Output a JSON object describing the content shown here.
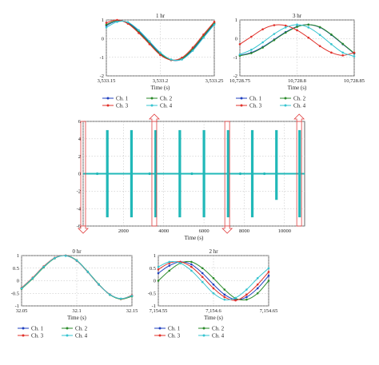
{
  "colors": {
    "ch1": "#1f3fbf",
    "ch2": "#2a8a2a",
    "ch3": "#e0302a",
    "ch4": "#35c4d0",
    "main_signal": "#20b8b8",
    "marker": "#e04040"
  },
  "chart_data": [
    {
      "id": "p1hr",
      "type": "line",
      "title": "1 hr",
      "xlabel": "Time (s)",
      "ylabel": "",
      "xlim": [
        3533.15,
        3533.25
      ],
      "ylim": [
        -2,
        1
      ],
      "xtick_labels": [
        "3,533.15",
        "3,533.2",
        "3,533.25"
      ],
      "ytick_labels": [
        "1",
        "0",
        "-1",
        "-2"
      ],
      "grid": true,
      "legend_position": "below",
      "x": [
        3533.15,
        3533.16,
        3533.17,
        3533.18,
        3533.19,
        3533.2,
        3533.21,
        3533.22,
        3533.23,
        3533.24,
        3533.25
      ],
      "series": [
        {
          "name": "Ch. 1",
          "color_key": "ch1",
          "values": [
            0.7,
            0.95,
            0.85,
            0.4,
            -0.2,
            -0.8,
            -1.15,
            -1.1,
            -0.6,
            0.1,
            0.8
          ]
        },
        {
          "name": "Ch. 2",
          "color_key": "ch2",
          "values": [
            0.75,
            0.97,
            0.82,
            0.35,
            -0.25,
            -0.83,
            -1.15,
            -1.07,
            -0.55,
            0.15,
            0.85
          ]
        },
        {
          "name": "Ch. 3",
          "color_key": "ch3",
          "values": [
            0.85,
            1.0,
            0.8,
            0.3,
            -0.3,
            -0.88,
            -1.15,
            -1.02,
            -0.48,
            0.22,
            0.9
          ]
        },
        {
          "name": "Ch. 4",
          "color_key": "ch4",
          "values": [
            0.6,
            0.9,
            0.88,
            0.45,
            -0.15,
            -0.75,
            -1.12,
            -1.12,
            -0.65,
            0.05,
            0.75
          ]
        }
      ]
    },
    {
      "id": "p3hr",
      "type": "line",
      "title": "3 hr",
      "xlabel": "Time (s)",
      "ylabel": "",
      "xlim": [
        10728.75,
        10728.85
      ],
      "ylim": [
        -2,
        1
      ],
      "xtick_labels": [
        "10,728.75",
        "10,728.8",
        "10,728.85"
      ],
      "ytick_labels": [
        "1",
        "0",
        "-1",
        "-2"
      ],
      "grid": true,
      "legend_position": "below",
      "x": [
        10728.75,
        10728.76,
        10728.77,
        10728.78,
        10728.79,
        10728.8,
        10728.81,
        10728.82,
        10728.83,
        10728.84,
        10728.85
      ],
      "series": [
        {
          "name": "Ch. 1",
          "color_key": "ch1",
          "values": [
            -0.9,
            -0.75,
            -0.45,
            -0.05,
            0.35,
            0.65,
            0.75,
            0.6,
            0.2,
            -0.3,
            -0.8
          ]
        },
        {
          "name": "Ch. 2",
          "color_key": "ch2",
          "values": [
            -0.92,
            -0.78,
            -0.48,
            -0.08,
            0.32,
            0.63,
            0.75,
            0.62,
            0.22,
            -0.28,
            -0.78
          ]
        },
        {
          "name": "Ch. 3",
          "color_key": "ch3",
          "values": [
            -0.3,
            0.1,
            0.5,
            0.72,
            0.7,
            0.45,
            0.05,
            -0.4,
            -0.75,
            -0.9,
            -0.75
          ]
        },
        {
          "name": "Ch. 4",
          "color_key": "ch4",
          "values": [
            -0.85,
            -0.6,
            -0.2,
            0.25,
            0.6,
            0.75,
            0.6,
            0.2,
            -0.3,
            -0.75,
            -0.95
          ]
        }
      ]
    },
    {
      "id": "pmain",
      "type": "line",
      "title": "",
      "xlabel": "Time (s)",
      "ylabel": "",
      "xlim": [
        0,
        11000
      ],
      "ylim": [
        -6,
        6
      ],
      "xticks": [
        0,
        2000,
        4000,
        6000,
        8000,
        10000
      ],
      "xtick_labels": [
        "0",
        "2000",
        "4000",
        "6000",
        "8000",
        "10000"
      ],
      "yticks": [
        6,
        4,
        2,
        0,
        -2,
        -4,
        -6
      ],
      "ytick_labels": [
        "6",
        "4",
        "2",
        "0",
        "-2",
        "-4",
        "-6"
      ],
      "grid": true,
      "spike_times": [
        1200,
        2400,
        3600,
        4800,
        6000,
        7200,
        8400,
        9600,
        10750
      ],
      "spike_ranges": [
        [
          -5,
          5
        ],
        [
          -5,
          5
        ],
        [
          -5,
          5
        ],
        [
          -5,
          5
        ],
        [
          -5,
          5
        ],
        [
          -5,
          5
        ],
        [
          -5,
          5
        ],
        [
          -3,
          5
        ],
        [
          -5,
          5
        ]
      ],
      "baseline": 0
    },
    {
      "id": "p0hr",
      "type": "line",
      "title": "0 hr",
      "xlabel": "Time (s)",
      "ylabel": "",
      "xlim": [
        32.05,
        32.15
      ],
      "ylim": [
        -1,
        1
      ],
      "xtick_labels": [
        "32.05",
        "32.1",
        "32.15"
      ],
      "ytick_labels": [
        "1",
        "0.5",
        "0",
        "-0.5",
        "-1"
      ],
      "grid": true,
      "legend_position": "below",
      "x": [
        32.05,
        32.06,
        32.07,
        32.08,
        32.09,
        32.1,
        32.11,
        32.12,
        32.13,
        32.14,
        32.15
      ],
      "series": [
        {
          "name": "Ch. 1",
          "color_key": "ch1",
          "values": [
            -0.3,
            0.1,
            0.55,
            0.9,
            1.0,
            0.8,
            0.35,
            -0.15,
            -0.55,
            -0.72,
            -0.6
          ]
        },
        {
          "name": "Ch. 2",
          "color_key": "ch2",
          "values": [
            -0.32,
            0.08,
            0.53,
            0.89,
            1.0,
            0.81,
            0.36,
            -0.14,
            -0.56,
            -0.73,
            -0.62
          ]
        },
        {
          "name": "Ch. 3",
          "color_key": "ch3",
          "values": [
            -0.28,
            0.12,
            0.57,
            0.91,
            1.0,
            0.79,
            0.34,
            -0.16,
            -0.54,
            -0.72,
            -0.58
          ]
        },
        {
          "name": "Ch. 4",
          "color_key": "ch4",
          "values": [
            -0.3,
            0.1,
            0.55,
            0.9,
            0.99,
            0.8,
            0.35,
            -0.15,
            -0.55,
            -0.71,
            -0.6
          ]
        }
      ]
    },
    {
      "id": "p2hr",
      "type": "line",
      "title": "2 hr",
      "xlabel": "Time (s)",
      "ylabel": "",
      "xlim": [
        7154.55,
        7154.65
      ],
      "ylim": [
        -1,
        1
      ],
      "xtick_labels": [
        "7,154.55",
        "7,154.6",
        "7,154.65"
      ],
      "ytick_labels": [
        "1",
        "0.5",
        "0",
        "-0.5",
        "-1"
      ],
      "grid": true,
      "legend_position": "below",
      "x": [
        7154.55,
        7154.56,
        7154.57,
        7154.58,
        7154.59,
        7154.6,
        7154.61,
        7154.62,
        7154.63,
        7154.64,
        7154.65
      ],
      "series": [
        {
          "name": "Ch. 1",
          "color_key": "ch1",
          "values": [
            0.3,
            0.6,
            0.75,
            0.65,
            0.3,
            -0.15,
            -0.55,
            -0.75,
            -0.65,
            -0.3,
            0.2
          ]
        },
        {
          "name": "Ch. 2",
          "color_key": "ch2",
          "values": [
            0.0,
            0.4,
            0.7,
            0.75,
            0.5,
            0.1,
            -0.35,
            -0.7,
            -0.75,
            -0.5,
            0.0
          ]
        },
        {
          "name": "Ch. 3",
          "color_key": "ch3",
          "values": [
            0.45,
            0.7,
            0.75,
            0.55,
            0.15,
            -0.3,
            -0.65,
            -0.78,
            -0.55,
            -0.15,
            0.35
          ]
        },
        {
          "name": "Ch. 4",
          "color_key": "ch4",
          "values": [
            0.55,
            0.75,
            0.7,
            0.4,
            -0.05,
            -0.5,
            -0.75,
            -0.68,
            -0.35,
            0.1,
            0.5
          ]
        }
      ]
    }
  ]
}
